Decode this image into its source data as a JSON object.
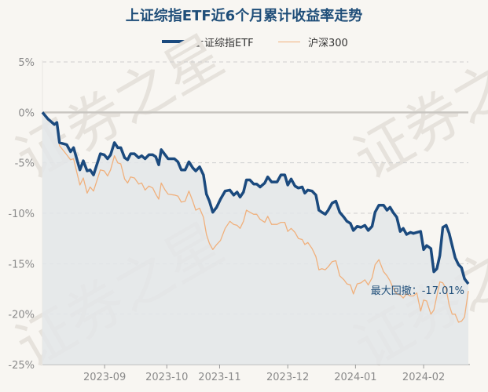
{
  "title": "上证综指ETF近6个月累计收益率走势",
  "legend": [
    {
      "name": "上证综指ETF",
      "color": "#1b4a7e",
      "style": "thick-line"
    },
    {
      "name": "沪深300",
      "color": "#f0b07c",
      "style": "thin-line"
    }
  ],
  "annotation": {
    "label": "最大回撤：-17.01%"
  },
  "watermark": "证券之星",
  "colors": {
    "etf": "#1b4a7e",
    "csi300": "#f0b07c",
    "area_fill": "#e3e6e9",
    "background": "#f8f6f2",
    "grid": "#cfcfcf",
    "zero_line": "#c9c6c1"
  },
  "chart_data": {
    "type": "line",
    "title": "上证综指ETF近6个月累计收益率走势",
    "xlabel": "",
    "ylabel": "",
    "ylim": [
      -25,
      5
    ],
    "yticks": [
      "5%",
      "0%",
      "-5%",
      "-10%",
      "-15%",
      "-20%",
      "-25%"
    ],
    "ytick_values": [
      5,
      0,
      -5,
      -10,
      -15,
      -20,
      -25
    ],
    "xticks": [
      "2023-09",
      "2023-10",
      "2023-11",
      "2023-12",
      "2024-01",
      "2024-02"
    ],
    "xtick_positions": [
      0.146,
      0.292,
      0.416,
      0.576,
      0.735,
      0.895
    ],
    "grid": true,
    "legend_position": "top",
    "annotation": {
      "text": "最大回撤：-17.01%",
      "value": -17.01
    },
    "x": [
      0,
      0.013,
      0.028,
      0.034,
      0.04,
      0.057,
      0.066,
      0.073,
      0.088,
      0.096,
      0.105,
      0.112,
      0.12,
      0.136,
      0.145,
      0.153,
      0.16,
      0.169,
      0.177,
      0.184,
      0.193,
      0.2,
      0.207,
      0.216,
      0.226,
      0.233,
      0.241,
      0.25,
      0.259,
      0.266,
      0.273,
      0.279,
      0.288,
      0.295,
      0.31,
      0.318,
      0.326,
      0.335,
      0.344,
      0.353,
      0.36,
      0.369,
      0.378,
      0.385,
      0.392,
      0.4,
      0.409,
      0.418,
      0.429,
      0.44,
      0.449,
      0.457,
      0.464,
      0.472,
      0.479,
      0.487,
      0.496,
      0.503,
      0.511,
      0.522,
      0.529,
      0.538,
      0.551,
      0.56,
      0.569,
      0.576,
      0.584,
      0.593,
      0.601,
      0.61,
      0.616,
      0.623,
      0.633,
      0.642,
      0.649,
      0.656,
      0.664,
      0.671,
      0.68,
      0.689,
      0.698,
      0.708,
      0.715,
      0.723,
      0.73,
      0.739,
      0.748,
      0.757,
      0.765,
      0.774,
      0.781,
      0.79,
      0.801,
      0.809,
      0.816,
      0.823,
      0.832,
      0.84,
      0.847,
      0.855,
      0.864,
      0.871,
      0.879,
      0.888,
      0.895,
      0.902,
      0.912,
      0.919,
      0.926,
      0.933,
      0.94,
      0.948,
      0.955,
      0.962,
      0.969,
      0.977,
      0.984,
      0.991,
      1.0
    ],
    "series": [
      {
        "name": "上证综指ETF",
        "values": [
          0,
          -0.65,
          -1.2,
          -1.0,
          -3.0,
          -3.2,
          -3.9,
          -3.5,
          -5.7,
          -4.8,
          -5.8,
          -5.7,
          -6.2,
          -4.1,
          -4.2,
          -4.6,
          -4.2,
          -3.0,
          -3.5,
          -3.5,
          -4.5,
          -4.7,
          -4.1,
          -4.1,
          -4.5,
          -4.3,
          -4.6,
          -4.2,
          -4.2,
          -4.4,
          -5.2,
          -3.7,
          -4.2,
          -4.6,
          -4.6,
          -4.9,
          -5.7,
          -5.7,
          -4.9,
          -5.5,
          -5.8,
          -5.4,
          -6.2,
          -8.1,
          -8.8,
          -9.9,
          -9.4,
          -8.6,
          -7.8,
          -7.7,
          -8.2,
          -7.9,
          -8.4,
          -7.9,
          -6.7,
          -6.7,
          -7.1,
          -7.1,
          -7.4,
          -7.0,
          -6.4,
          -6.9,
          -6.9,
          -6.2,
          -6.2,
          -7.2,
          -6.6,
          -7.3,
          -7.5,
          -7.4,
          -8.0,
          -7.7,
          -7.8,
          -8.2,
          -9.7,
          -9.9,
          -10.1,
          -9.7,
          -9.0,
          -8.8,
          -9.9,
          -10.4,
          -10.8,
          -11.0,
          -11.7,
          -11.3,
          -11.4,
          -11.2,
          -11.7,
          -11.3,
          -9.9,
          -9.2,
          -9.2,
          -9.7,
          -9.4,
          -9.9,
          -10.4,
          -11.8,
          -11.5,
          -12.1,
          -11.9,
          -12.0,
          -11.9,
          -11.8,
          -13.6,
          -13.2,
          -13.5,
          -15.8,
          -15.5,
          -14.2,
          -11.4,
          -11.2,
          -12.0,
          -13.2,
          -14.4,
          -15.1,
          -15.4,
          -16.5,
          -17.0,
          -14.4
        ]
      },
      {
        "name": "沪深300",
        "values": [
          0,
          -0.8,
          -1.1,
          -1.1,
          -3.3,
          -4.2,
          -4.7,
          -4.6,
          -7.2,
          -6.5,
          -8.0,
          -7.4,
          -7.8,
          -5.7,
          -5.8,
          -6.3,
          -5.7,
          -4.3,
          -5.0,
          -5.1,
          -6.6,
          -7.0,
          -6.4,
          -6.5,
          -7.1,
          -7.0,
          -7.7,
          -7.3,
          -7.5,
          -8.1,
          -8.6,
          -7.0,
          -7.7,
          -8.1,
          -8.2,
          -8.3,
          -8.9,
          -8.8,
          -7.8,
          -8.8,
          -9.7,
          -9.5,
          -10.4,
          -12.1,
          -13.0,
          -13.6,
          -13.1,
          -12.7,
          -11.5,
          -10.8,
          -11.1,
          -11.2,
          -11.5,
          -10.8,
          -9.7,
          -9.9,
          -10.1,
          -10.1,
          -10.6,
          -10.9,
          -10.3,
          -11.1,
          -11.1,
          -10.9,
          -10.9,
          -11.8,
          -11.5,
          -11.9,
          -12.5,
          -12.6,
          -13.1,
          -12.9,
          -13.5,
          -14.3,
          -15.6,
          -15.5,
          -15.6,
          -15.3,
          -14.8,
          -14.7,
          -16.2,
          -16.6,
          -17.0,
          -17.1,
          -18.0,
          -17.0,
          -16.9,
          -16.6,
          -17.1,
          -16.4,
          -15.1,
          -14.6,
          -15.8,
          -16.2,
          -16.7,
          -17.4,
          -18.0,
          -18.1,
          -18.4,
          -18.0,
          -18.2,
          -18.2,
          -17.9,
          -19.7,
          -18.6,
          -18.7,
          -20.0,
          -19.6,
          -18.2,
          -16.8,
          -16.9,
          -17.5,
          -19.1,
          -20.0,
          -20.0,
          -20.8,
          -20.7,
          -20.3,
          -17.7,
          -17.7
        ]
      }
    ]
  }
}
